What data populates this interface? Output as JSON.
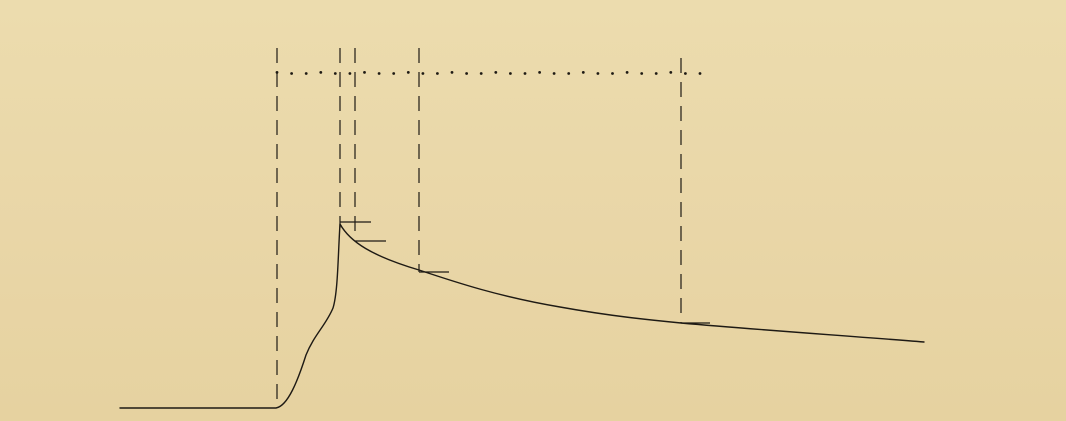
{
  "figure": {
    "type": "trace-diagram",
    "paper_color": "#e8d5a6",
    "ink_color": "#1e1a14",
    "time_marker_count": 30,
    "guide_line_count": 5,
    "reading_tick_count": 4
  }
}
